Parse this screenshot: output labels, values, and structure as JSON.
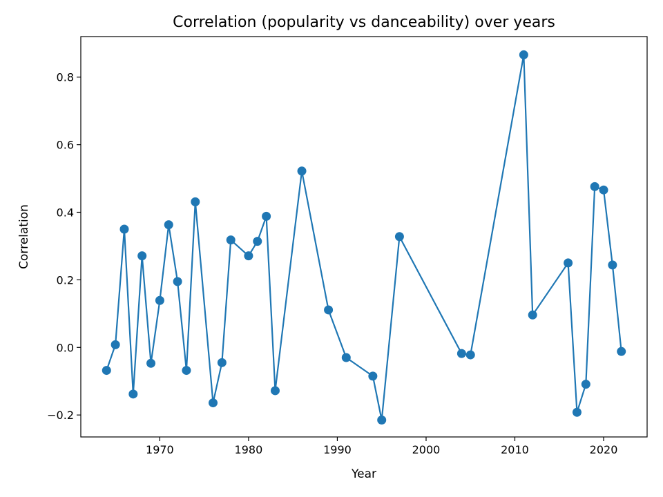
{
  "chart_data": {
    "type": "line",
    "title": "Correlation (popularity vs danceability) over years",
    "xlabel": "Year",
    "ylabel": "Correlation",
    "xlim": [
      1961.1,
      2024.9
    ],
    "ylim": [
      -0.265,
      0.92
    ],
    "xticks": [
      1970,
      1980,
      1990,
      2000,
      2010,
      2020
    ],
    "yticks": [
      -0.2,
      0.0,
      0.2,
      0.4,
      0.6,
      0.8
    ],
    "ytick_labels": [
      "−0.2",
      "0.0",
      "0.2",
      "0.4",
      "0.6",
      "0.8"
    ],
    "grid": false,
    "marker": "circle",
    "color": "#1f77b4",
    "series": [
      {
        "x": [
          1964,
          1965,
          1966,
          1967,
          1968,
          1969,
          1970,
          1971,
          1972,
          1973,
          1974,
          1976,
          1977,
          1978,
          1980,
          1981,
          1982,
          1983,
          1986,
          1989,
          1991,
          1994,
          1995,
          1997,
          2004,
          2005,
          2011,
          2012,
          2016,
          2017,
          2018,
          2019,
          2020,
          2021,
          2022
        ],
        "values": [
          -0.068,
          0.008,
          0.35,
          -0.138,
          0.271,
          -0.047,
          0.139,
          0.363,
          0.195,
          -0.068,
          0.431,
          -0.164,
          -0.045,
          0.318,
          0.271,
          0.314,
          0.388,
          -0.128,
          0.522,
          0.111,
          -0.03,
          -0.085,
          -0.215,
          0.328,
          -0.018,
          -0.022,
          0.866,
          0.096,
          0.25,
          -0.192,
          -0.109,
          0.476,
          0.466,
          0.244,
          -0.012
        ]
      }
    ]
  }
}
